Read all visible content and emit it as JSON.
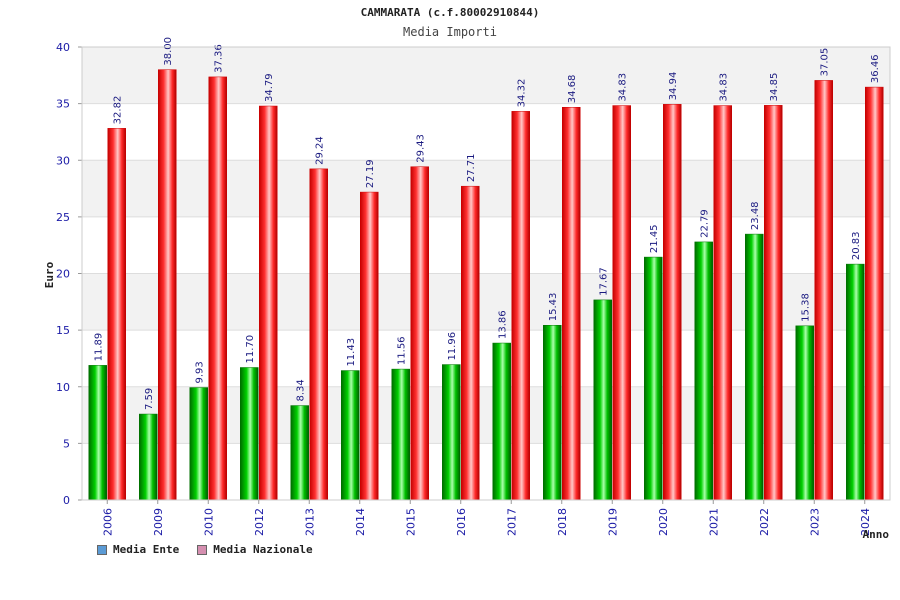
{
  "chart_data": {
    "type": "bar",
    "title": "CAMMARATA (c.f.80002910844)",
    "subtitle": "Media Importi",
    "xlabel": "Anno",
    "ylabel": "Euro",
    "ylim": [
      0,
      40
    ],
    "yticks": [
      0,
      5,
      10,
      15,
      20,
      25,
      30,
      35,
      40
    ],
    "grid": true,
    "legend_position": "bottom-left",
    "categories": [
      "2006",
      "2009",
      "2010",
      "2012",
      "2013",
      "2014",
      "2015",
      "2016",
      "2017",
      "2018",
      "2019",
      "2020",
      "2021",
      "2022",
      "2023",
      "2024"
    ],
    "series": [
      {
        "name": "Media Ente",
        "color": "#00aa00",
        "legend_color": "#5b9bd5",
        "values": [
          11.89,
          7.59,
          9.93,
          11.7,
          8.34,
          11.43,
          11.56,
          11.96,
          13.86,
          15.43,
          17.67,
          21.45,
          22.79,
          23.48,
          15.38,
          20.83
        ],
        "labels": [
          "11.89",
          "7.59",
          "9.93",
          "11.70",
          "8.34",
          "11.43",
          "11.56",
          "11.96",
          "13.86",
          "15.43",
          "17.67",
          "21.45",
          "22.79",
          "23.48",
          "15.38",
          "20.83"
        ]
      },
      {
        "name": "Media Nazionale",
        "color": "#ee1111",
        "legend_color": "#d58fb0",
        "values": [
          32.82,
          38.0,
          37.36,
          34.79,
          29.24,
          27.19,
          29.43,
          27.71,
          34.32,
          34.68,
          34.83,
          34.94,
          34.83,
          34.85,
          37.05,
          36.46
        ],
        "labels": [
          "32.82",
          "38.00",
          "37.36",
          "34.79",
          "29.24",
          "27.19",
          "29.43",
          "27.71",
          "34.32",
          "34.68",
          "34.83",
          "34.94",
          "34.83",
          "34.85",
          "37.05",
          "36.46"
        ]
      }
    ]
  }
}
